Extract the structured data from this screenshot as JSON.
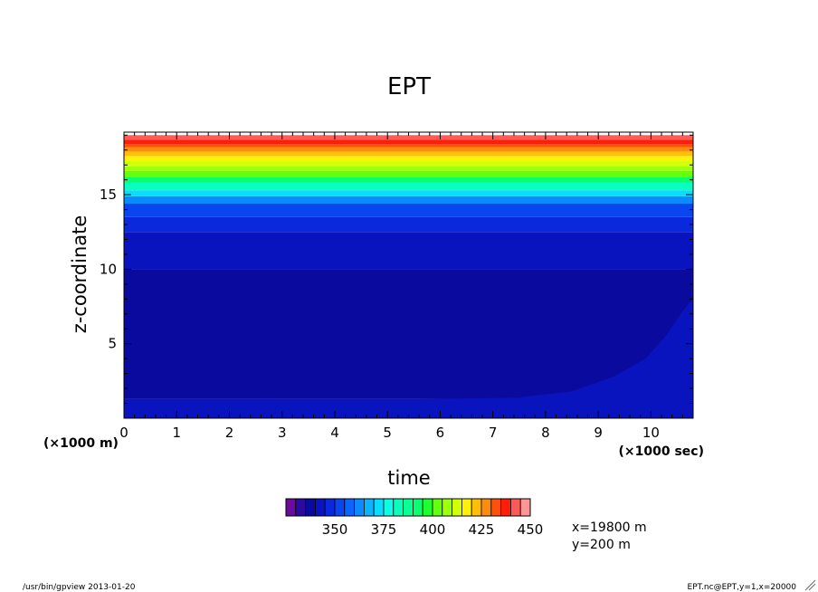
{
  "chart_data": {
    "type": "heatmap",
    "title": "EPT",
    "xlabel": "time",
    "ylabel": "z-coordinate",
    "x_unit": "(×1000 sec)",
    "y_unit": "(×1000 m)",
    "xlim": [
      0,
      10.8
    ],
    "ylim": [
      0,
      19.2
    ],
    "x_ticks": [
      "0",
      "1",
      "2",
      "3",
      "4",
      "5",
      "6",
      "7",
      "8",
      "9",
      "10"
    ],
    "y_ticks": [
      "5",
      "10",
      "15"
    ],
    "colorbar": {
      "levels": [
        330,
        335,
        340,
        345,
        350,
        355,
        360,
        365,
        370,
        375,
        380,
        385,
        390,
        395,
        400,
        405,
        410,
        415,
        420,
        425,
        430,
        435,
        440,
        445,
        450
      ],
      "colors": [
        "#6a0a9e",
        "#2d0a9e",
        "#0a0a9e",
        "#0a14be",
        "#0a28dc",
        "#0a46f0",
        "#0a64ff",
        "#0a8cff",
        "#0ab4ff",
        "#0adcff",
        "#0affe6",
        "#0affbe",
        "#0aff96",
        "#0aff6e",
        "#1eff32",
        "#64ff0a",
        "#a0ff0a",
        "#d2ff0a",
        "#fff00a",
        "#ffbe0a",
        "#ff8c0a",
        "#ff500a",
        "#ff1e0a",
        "#ff5a5a",
        "#ff9696"
      ],
      "tick_labels": [
        "350",
        "375",
        "400",
        "425",
        "450"
      ]
    },
    "bands": [
      {
        "z_bottom": 0,
        "z_top": 0.3,
        "value": 350
      },
      {
        "z_bottom": 0.3,
        "z_top": 1.3,
        "value": 345
      },
      {
        "z_bottom": 1.3,
        "z_top": 10.0,
        "value": 340
      },
      {
        "z_bottom": 10.0,
        "z_top": 12.5,
        "value": 345
      },
      {
        "z_bottom": 12.5,
        "z_top": 13.5,
        "value": 350
      },
      {
        "z_bottom": 13.5,
        "z_top": 14.4,
        "value": 355
      },
      {
        "z_bottom": 14.4,
        "z_top": 14.9,
        "value": 365
      },
      {
        "z_bottom": 14.9,
        "z_top": 15.3,
        "value": 375
      },
      {
        "z_bottom": 15.3,
        "z_top": 15.8,
        "value": 385
      },
      {
        "z_bottom": 15.8,
        "z_top": 16.2,
        "value": 395
      },
      {
        "z_bottom": 16.2,
        "z_top": 16.6,
        "value": 405
      },
      {
        "z_bottom": 16.6,
        "z_top": 16.9,
        "value": 410
      },
      {
        "z_bottom": 16.9,
        "z_top": 17.3,
        "value": 415
      },
      {
        "z_bottom": 17.3,
        "z_top": 17.6,
        "value": 420
      },
      {
        "z_bottom": 17.6,
        "z_top": 17.9,
        "value": 425
      },
      {
        "z_bottom": 17.9,
        "z_top": 18.2,
        "value": 430
      },
      {
        "z_bottom": 18.2,
        "z_top": 18.4,
        "value": 435
      },
      {
        "z_bottom": 18.4,
        "z_top": 18.7,
        "value": 440
      },
      {
        "z_bottom": 18.7,
        "z_top": 19.0,
        "value": 445
      }
    ],
    "surface_feature": {
      "value": 345,
      "description_points": [
        [
          0,
          0.3
        ],
        [
          2,
          0.8
        ],
        [
          4,
          1.2
        ],
        [
          6,
          1.3
        ],
        [
          8,
          1.4
        ],
        [
          9,
          1.3
        ],
        [
          9.5,
          0.8
        ],
        [
          10.2,
          0.3
        ],
        [
          10.8,
          0
        ]
      ]
    },
    "late_warm_plume": {
      "value": 345,
      "points": [
        [
          7.5,
          1.4
        ],
        [
          8.5,
          1.8
        ],
        [
          9.3,
          2.8
        ],
        [
          9.9,
          4.0
        ],
        [
          10.3,
          5.6
        ],
        [
          10.6,
          7.2
        ],
        [
          10.8,
          8.0
        ]
      ]
    }
  },
  "annotations": {
    "position_line1": "x=19800 m",
    "position_line2": "y=200 m",
    "footer_left": "/usr/bin/gpview  2013-01-20",
    "footer_right": "EPT.nc@EPT,y=1,x=20000"
  }
}
